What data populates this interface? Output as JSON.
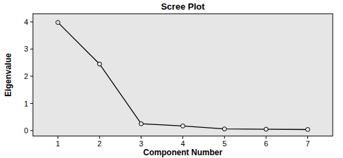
{
  "chart_data": {
    "type": "line",
    "title": "Scree Plot",
    "x_label": "Component Number",
    "y_label": "Eigenvalue",
    "x": [
      1,
      2,
      3,
      4,
      5,
      6,
      7
    ],
    "values": [
      3.98,
      2.45,
      0.25,
      0.17,
      0.06,
      0.05,
      0.04
    ],
    "color": "#000000",
    "marker": "circle",
    "xlim": [
      0.4,
      7.6
    ],
    "ylim": [
      -0.2,
      4.3
    ],
    "xticks": [
      1,
      2,
      3,
      4,
      5,
      6,
      7
    ],
    "yticks": [
      0,
      1,
      2,
      3,
      4
    ],
    "grid": false
  }
}
